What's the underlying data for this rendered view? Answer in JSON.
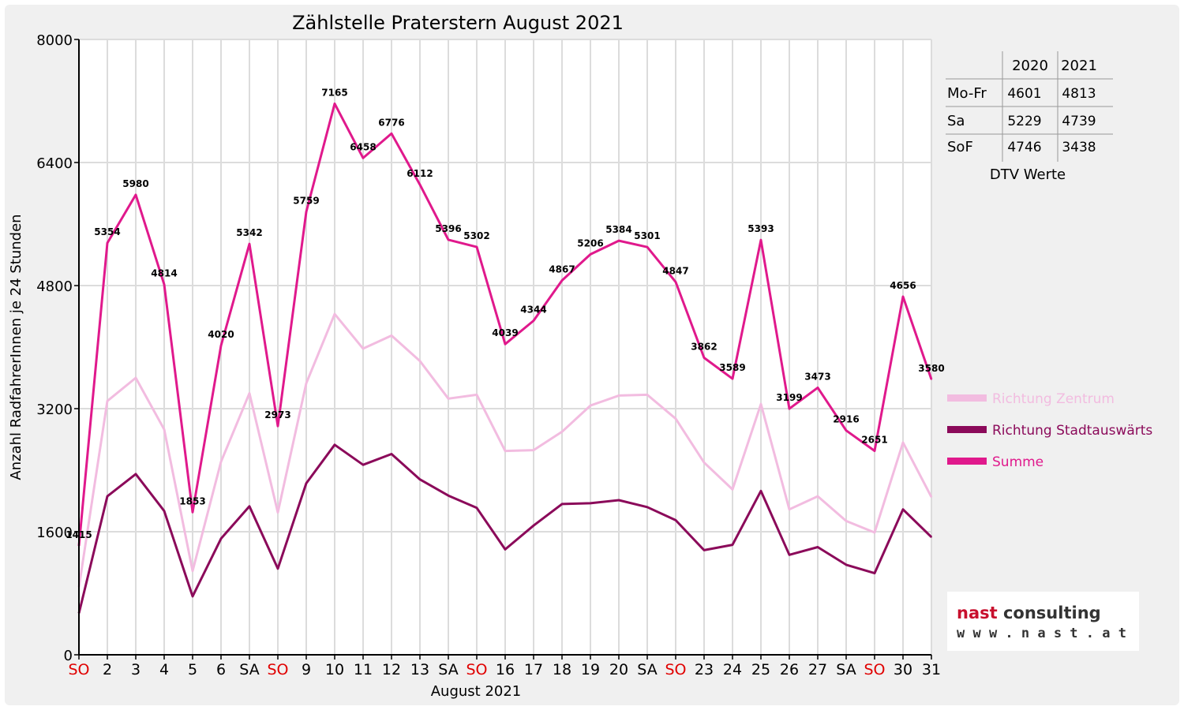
{
  "chart_data": {
    "type": "line",
    "title": "Zählstelle Praterstern August 2021",
    "xlabel": "August 2021",
    "ylabel": "Anzahl RadfahrerInnen je 24 Stunden",
    "ylim": [
      0,
      8000
    ],
    "yticks": [
      "0",
      "1600",
      "3200",
      "4800",
      "6400",
      "8000"
    ],
    "ytick_values": [
      0,
      1600,
      3200,
      4800,
      6400,
      8000
    ],
    "grid": true,
    "legend_position": "right",
    "categories": [
      "SO",
      "2",
      "3",
      "4",
      "5",
      "6",
      "SA",
      "SO",
      "9",
      "10",
      "11",
      "12",
      "13",
      "SA",
      "SO",
      "16",
      "17",
      "18",
      "19",
      "20",
      "SA",
      "SO",
      "23",
      "24",
      "25",
      "26",
      "27",
      "SA",
      "SO",
      "30",
      "31"
    ],
    "category_colors": [
      "#e00000",
      "#000000",
      "#000000",
      "#000000",
      "#000000",
      "#000000",
      "#000000",
      "#e00000",
      "#000000",
      "#000000",
      "#000000",
      "#000000",
      "#000000",
      "#000000",
      "#e00000",
      "#000000",
      "#000000",
      "#000000",
      "#000000",
      "#000000",
      "#000000",
      "#e00000",
      "#000000",
      "#000000",
      "#000000",
      "#000000",
      "#000000",
      "#000000",
      "#e00000",
      "#000000",
      "#000000"
    ],
    "series": [
      {
        "name": "Richtung Zentrum",
        "color": "#f2bce0",
        "values": [
          880,
          3300,
          3600,
          2930,
          1090,
          2510,
          3400,
          1850,
          3530,
          4430,
          3980,
          4150,
          3820,
          3330,
          3380,
          2650,
          2660,
          2900,
          3240,
          3370,
          3380,
          3070,
          2500,
          2150,
          3260,
          1890,
          2060,
          1740,
          1590,
          2760,
          2050
        ]
      },
      {
        "name": "Richtung Stadtauswärts",
        "color": "#8b0a5a",
        "values": [
          540,
          2060,
          2350,
          1870,
          760,
          1510,
          1930,
          1120,
          2230,
          2730,
          2470,
          2610,
          2280,
          2070,
          1910,
          1370,
          1680,
          1960,
          1970,
          2010,
          1920,
          1750,
          1360,
          1430,
          2130,
          1300,
          1400,
          1170,
          1060,
          1890,
          1530
        ]
      },
      {
        "name": "Summe",
        "color": "#e0198c",
        "values": [
          1415,
          5354,
          5980,
          4814,
          1853,
          4020,
          5342,
          2973,
          5759,
          7165,
          6458,
          6776,
          6112,
          5396,
          5302,
          4039,
          4344,
          4867,
          5206,
          5384,
          5301,
          4847,
          3862,
          3589,
          5393,
          3199,
          3473,
          2916,
          2651,
          4656,
          3580
        ],
        "labels": [
          "1415",
          "5354",
          "5980",
          "4814",
          "1853",
          "4020",
          "5342",
          "2973",
          "5759",
          "7165",
          "6458",
          "6776",
          "6112",
          "5396",
          "5302",
          "4039",
          "4344",
          "4867",
          "5206",
          "5384",
          "5301",
          "4847",
          "3862",
          "3589",
          "5393",
          "3199",
          "3473",
          "2916",
          "2651",
          "4656",
          "3580"
        ]
      }
    ]
  },
  "dtv_table": {
    "caption": "DTV Werte",
    "headers": [
      "",
      "2020",
      "2021"
    ],
    "rows": [
      [
        "Mo-Fr",
        "4601",
        "4813"
      ],
      [
        "Sa",
        "5229",
        "4739"
      ],
      [
        "SoF",
        "4746",
        "3438"
      ]
    ]
  },
  "logo": {
    "word1": "nast",
    "word2": " consulting",
    "word1_color": "#c8102e",
    "word2_color": "#333333",
    "url": "w w w . n a s t . a t"
  }
}
